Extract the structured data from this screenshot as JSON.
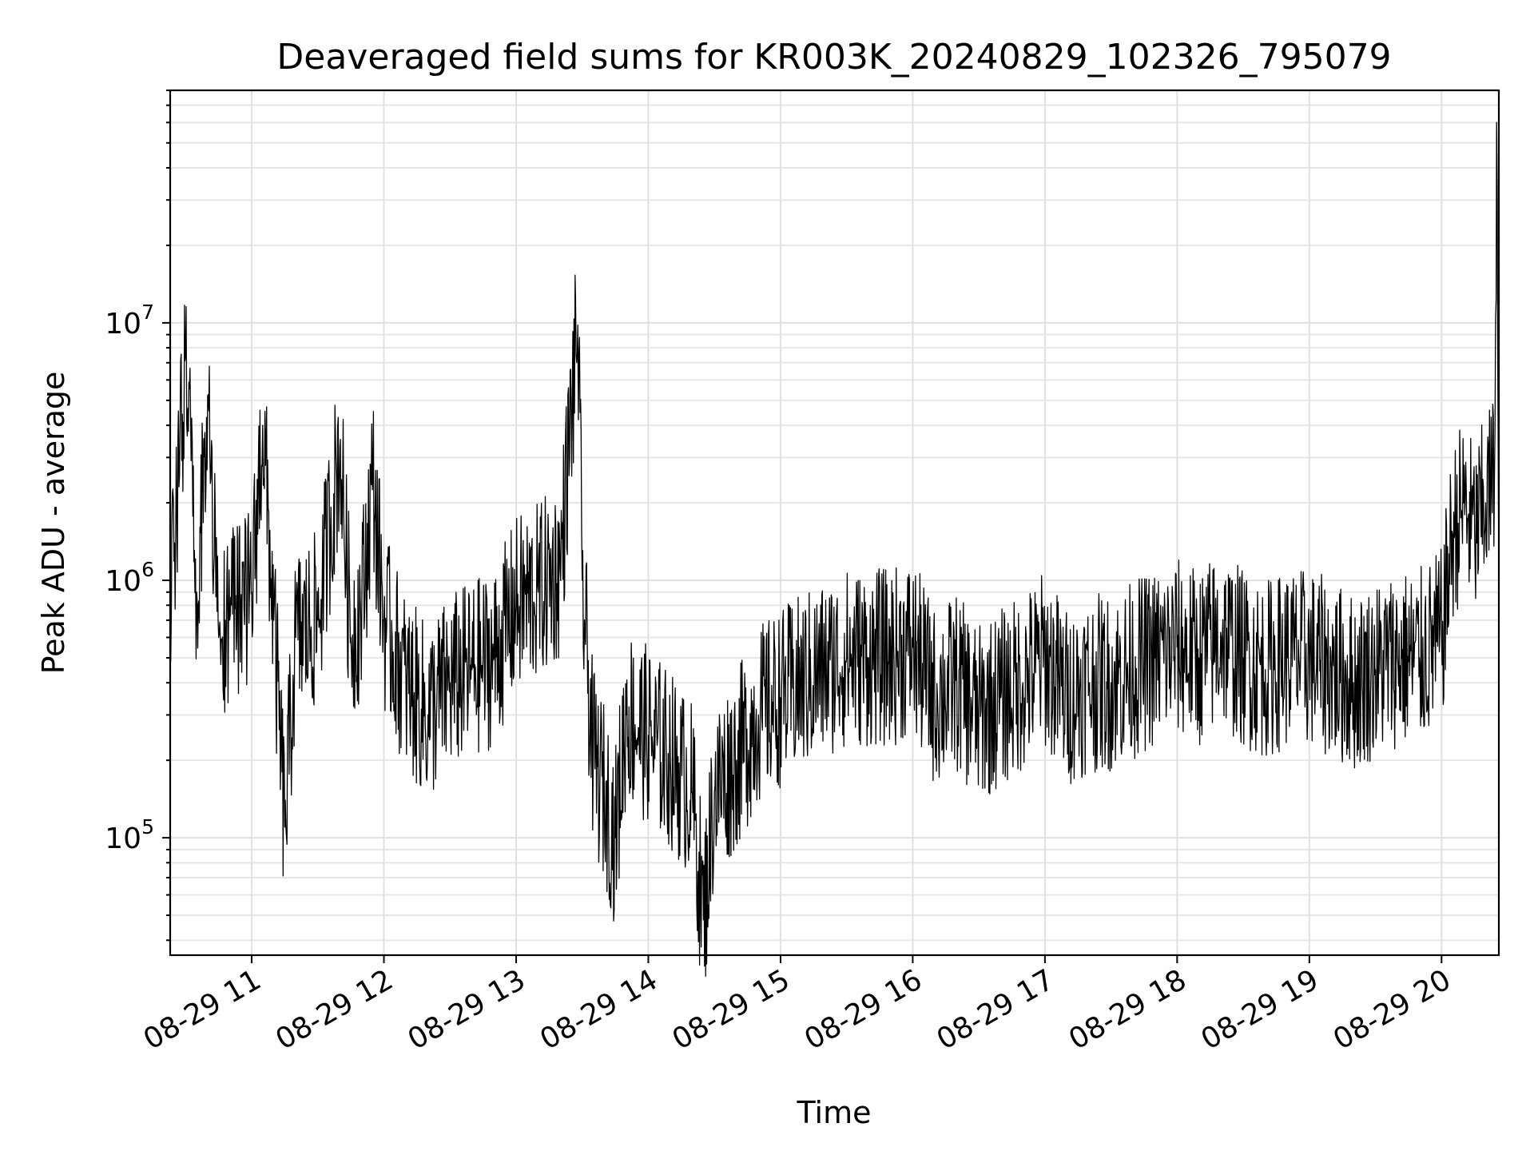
{
  "chart_data": {
    "type": "line",
    "title": "Deaveraged field sums for KR003K_20240829_102326_795079",
    "xlabel": "Time",
    "ylabel": "Peak ADU - average",
    "yscale": "log",
    "ylim": [
      35000,
      80000000
    ],
    "xlim": [
      "2024-08-29 10:23",
      "2024-08-29 20:26"
    ],
    "x_tick_labels": [
      "08-29 11",
      "08-29 12",
      "08-29 13",
      "08-29 14",
      "08-29 15",
      "08-29 16",
      "08-29 17",
      "08-29 18",
      "08-29 19",
      "08-29 20"
    ],
    "x_tick_times": [
      "2024-08-29 11:00",
      "2024-08-29 12:00",
      "2024-08-29 13:00",
      "2024-08-29 14:00",
      "2024-08-29 15:00",
      "2024-08-29 16:00",
      "2024-08-29 17:00",
      "2024-08-29 18:00",
      "2024-08-29 19:00",
      "2024-08-29 20:00"
    ],
    "y_tick_values": [
      100000,
      1000000,
      10000000
    ],
    "y_tick_labels": [
      {
        "base": "10",
        "exp": "5"
      },
      {
        "base": "10",
        "exp": "6"
      },
      {
        "base": "10",
        "exp": "7"
      }
    ],
    "grid": true,
    "line_color": "#000000",
    "series": [
      {
        "x": [
          "2024-08-29 10:23",
          "2024-08-29 10:26",
          "2024-08-29 10:30",
          "2024-08-29 10:35",
          "2024-08-29 10:40",
          "2024-08-29 10:45",
          "2024-08-29 10:50",
          "2024-08-29 10:55",
          "2024-08-29 11:00",
          "2024-08-29 11:05",
          "2024-08-29 11:10",
          "2024-08-29 11:15",
          "2024-08-29 11:20",
          "2024-08-29 11:30",
          "2024-08-29 11:40",
          "2024-08-29 11:45",
          "2024-08-29 11:50",
          "2024-08-29 11:55",
          "2024-08-29 12:00",
          "2024-08-29 12:10",
          "2024-08-29 12:20",
          "2024-08-29 12:30",
          "2024-08-29 12:40",
          "2024-08-29 12:50",
          "2024-08-29 13:00",
          "2024-08-29 13:10",
          "2024-08-29 13:20",
          "2024-08-29 13:28",
          "2024-08-29 13:30",
          "2024-08-29 13:35",
          "2024-08-29 13:40",
          "2024-08-29 13:45",
          "2024-08-29 13:50",
          "2024-08-29 14:00",
          "2024-08-29 14:10",
          "2024-08-29 14:20",
          "2024-08-29 14:25",
          "2024-08-29 14:30",
          "2024-08-29 14:40",
          "2024-08-29 14:50",
          "2024-08-29 15:00",
          "2024-08-29 15:10",
          "2024-08-29 15:20",
          "2024-08-29 15:30",
          "2024-08-29 15:40",
          "2024-08-29 15:50",
          "2024-08-29 16:00",
          "2024-08-29 16:10",
          "2024-08-29 16:20",
          "2024-08-29 16:30",
          "2024-08-29 16:40",
          "2024-08-29 16:50",
          "2024-08-29 17:00",
          "2024-08-29 17:10",
          "2024-08-29 17:20",
          "2024-08-29 17:30",
          "2024-08-29 17:40",
          "2024-08-29 17:50",
          "2024-08-29 18:00",
          "2024-08-29 18:10",
          "2024-08-29 18:20",
          "2024-08-29 18:30",
          "2024-08-29 18:40",
          "2024-08-29 18:50",
          "2024-08-29 19:00",
          "2024-08-29 19:10",
          "2024-08-29 19:20",
          "2024-08-29 19:30",
          "2024-08-29 19:40",
          "2024-08-29 19:50",
          "2024-08-29 20:00",
          "2024-08-29 20:05",
          "2024-08-29 20:10",
          "2024-08-29 20:15",
          "2024-08-29 20:20",
          "2024-08-29 20:24",
          "2024-08-29 20:25",
          "2024-08-29 20:26"
        ],
        "values": [
          1000000,
          1800000,
          7500000,
          900000,
          5200000,
          600000,
          700000,
          800000,
          900000,
          4000000,
          700000,
          110000,
          600000,
          700000,
          3300000,
          600000,
          800000,
          2500000,
          700000,
          400000,
          300000,
          400000,
          450000,
          500000,
          800000,
          900000,
          1100000,
          9800000,
          1000000,
          200000,
          150000,
          100000,
          300000,
          250000,
          200000,
          150000,
          48000,
          150000,
          200000,
          300000,
          350000,
          400000,
          450000,
          500000,
          500000,
          500000,
          550000,
          350000,
          400000,
          300000,
          350000,
          400000,
          500000,
          350000,
          400000,
          400000,
          450000,
          500000,
          550000,
          500000,
          600000,
          500000,
          450000,
          500000,
          500000,
          450000,
          400000,
          450000,
          500000,
          500000,
          600000,
          1500000,
          2000000,
          1500000,
          2000000,
          2500000,
          60000000,
          1000000
        ]
      }
    ]
  }
}
